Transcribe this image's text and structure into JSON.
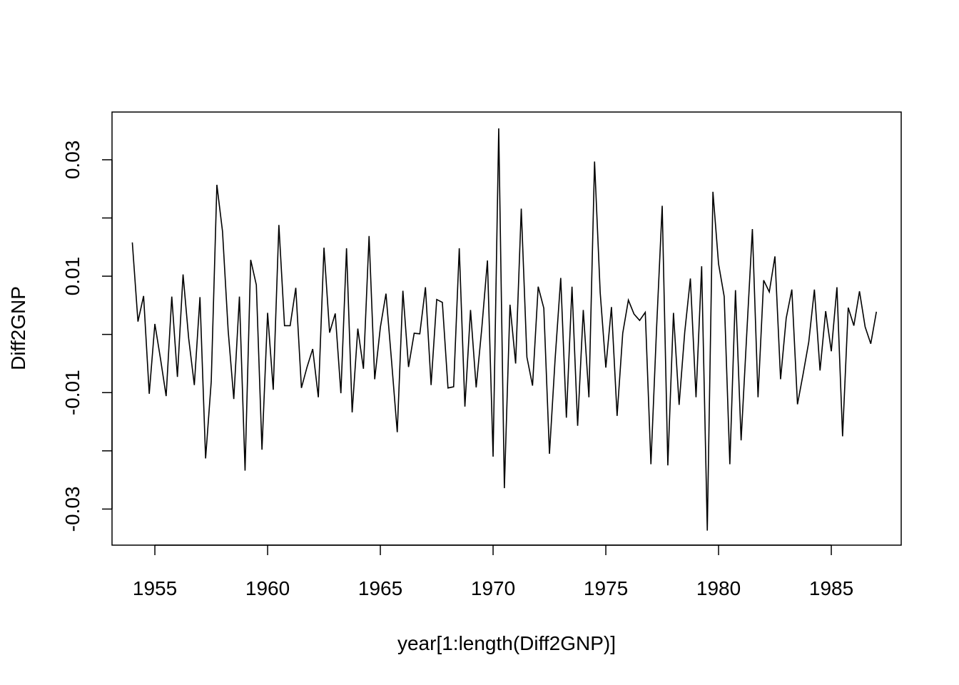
{
  "chart_data": {
    "type": "line",
    "title": "",
    "xlabel": "year[1:length(Diff2GNP)]",
    "ylabel": "Diff2GNP",
    "xlim": [
      1953.1,
      1988.1
    ],
    "ylim": [
      -0.0362,
      0.0382
    ],
    "x_ticks": [
      1955,
      1960,
      1965,
      1970,
      1975,
      1980,
      1985
    ],
    "y_ticks": [
      -0.03,
      -0.01,
      0.01,
      0.03
    ],
    "x_tick_labels": [
      "1955",
      "1960",
      "1965",
      "1970",
      "1975",
      "1980",
      "1985"
    ],
    "y_tick_labels": [
      "-0.03",
      "-0.01",
      "0.01",
      "0.03"
    ],
    "grid": false,
    "legend": "none",
    "line_color": "#000000",
    "series": [
      {
        "x_start": 1954.0,
        "x_step": 0.25,
        "values": [
          0.0158,
          0.0022,
          0.0066,
          -0.0102,
          0.0018,
          -0.0042,
          -0.0106,
          0.0065,
          -0.0073,
          0.0103,
          -0.0007,
          -0.0087,
          0.0064,
          -0.0213,
          -0.0081,
          0.0257,
          0.0177,
          0.0007,
          -0.0111,
          0.0065,
          -0.0234,
          0.0128,
          0.0085,
          -0.0198,
          0.0037,
          -0.0095,
          0.0188,
          0.0015,
          0.0015,
          0.008,
          -0.0092,
          -0.0056,
          -0.0025,
          -0.0108,
          0.0149,
          0.0003,
          0.0036,
          -0.0101,
          0.0148,
          -0.0134,
          0.001,
          -0.0059,
          0.0169,
          -0.0077,
          0.0012,
          0.007,
          -0.0047,
          -0.0168,
          0.0075,
          -0.0056,
          0.0002,
          0.0001,
          0.0081,
          -0.0087,
          0.006,
          0.0055,
          -0.0092,
          -0.009,
          0.0148,
          -0.0124,
          0.0042,
          -0.0091,
          0.0011,
          0.0127,
          -0.021,
          0.0354,
          -0.0264,
          0.0051,
          -0.005,
          0.0216,
          -0.0039,
          -0.0088,
          0.0082,
          0.0045,
          -0.0205,
          -0.0043,
          0.0097,
          -0.0143,
          0.0082,
          -0.0157,
          0.0042,
          -0.0108,
          0.0297,
          0.0072,
          -0.0057,
          0.0047,
          -0.014,
          0.0002,
          0.0059,
          0.0035,
          0.0024,
          0.0038,
          -0.0223,
          0.001,
          0.0221,
          -0.0225,
          0.0037,
          -0.0121,
          0.0004,
          0.0096,
          -0.0108,
          0.0117,
          -0.0337,
          0.0245,
          0.0121,
          0.0065,
          -0.0223,
          0.0076,
          -0.0182,
          0.0001,
          0.0181,
          -0.0108,
          0.0093,
          0.0073,
          0.0134,
          -0.0077,
          0.0028,
          0.0077,
          -0.012,
          -0.0068,
          -0.0013,
          0.0077,
          -0.0062,
          0.004,
          -0.0029,
          0.0081,
          -0.0175,
          0.0046,
          0.0015,
          0.0074,
          0.0013,
          -0.0016,
          0.0039
        ]
      }
    ]
  }
}
